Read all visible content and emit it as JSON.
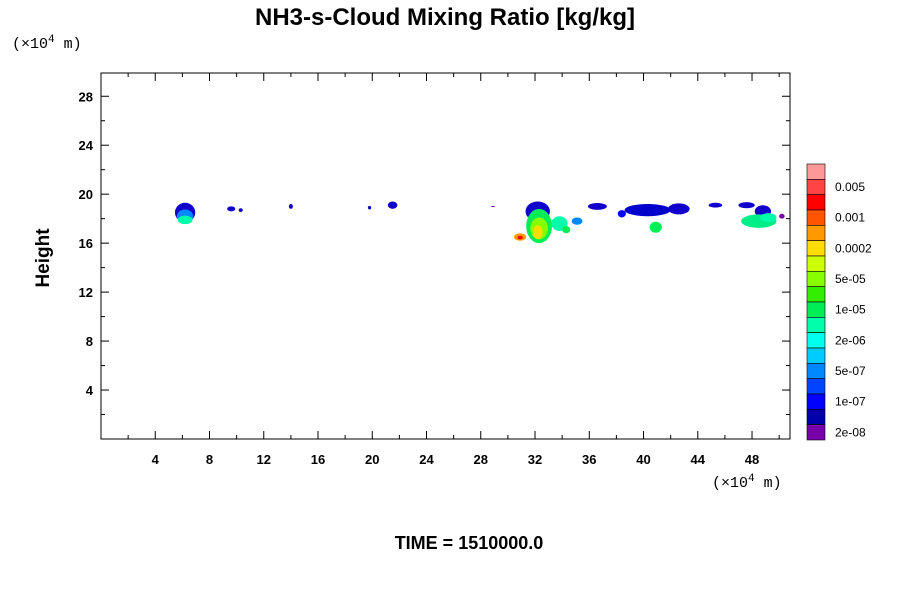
{
  "chart_data": {
    "type": "heatmap",
    "title": "NH3-s-Cloud Mixing Ratio [kg/kg]",
    "ylabel": "Height",
    "x_unit": {
      "prefix": "(×10",
      "exp": "4",
      "suffix": " m)"
    },
    "y_unit": {
      "prefix": "(×10",
      "exp": "4",
      "suffix": " m)"
    },
    "xlim": [
      0,
      50.8
    ],
    "ylim": [
      0,
      29.9
    ],
    "x_ticks": [
      4,
      8,
      12,
      16,
      20,
      24,
      28,
      32,
      36,
      40,
      44,
      48
    ],
    "y_ticks": [
      4,
      8,
      12,
      16,
      20,
      24,
      28
    ],
    "x_minor_step": 2,
    "y_minor_step": 2,
    "footer": "TIME = 1510000.0",
    "colorbar": {
      "colors": [
        "#ff9999",
        "#ff4444",
        "#ff0000",
        "#ff5500",
        "#ff9900",
        "#ffdd00",
        "#ccff00",
        "#88ff00",
        "#33ee00",
        "#00ee55",
        "#00ffaa",
        "#00ffee",
        "#00ccff",
        "#0088ff",
        "#0044ff",
        "#0000ff",
        "#0000aa",
        "#7700aa"
      ],
      "labels": [
        "0.005",
        "0.001",
        "0.0002",
        "5e-05",
        "1e-05",
        "2e-06",
        "5e-07",
        "1e-07",
        "2e-08"
      ]
    },
    "cloud_patches": [
      {
        "x": 6.2,
        "y": 18.5,
        "rx": 0.75,
        "ry": 0.8,
        "color": "#1100cc"
      },
      {
        "x": 6.2,
        "y": 18.2,
        "rx": 0.6,
        "ry": 0.55,
        "color": "#0088ff"
      },
      {
        "x": 6.2,
        "y": 17.9,
        "rx": 0.55,
        "ry": 0.35,
        "color": "#00ffaa"
      },
      {
        "x": 9.6,
        "y": 18.8,
        "rx": 0.3,
        "ry": 0.2,
        "color": "#1100cc"
      },
      {
        "x": 10.3,
        "y": 18.7,
        "rx": 0.15,
        "ry": 0.15,
        "color": "#1100cc"
      },
      {
        "x": 14.0,
        "y": 19.0,
        "rx": 0.15,
        "ry": 0.2,
        "color": "#1100cc"
      },
      {
        "x": 19.8,
        "y": 18.9,
        "rx": 0.12,
        "ry": 0.15,
        "color": "#1100cc"
      },
      {
        "x": 21.5,
        "y": 19.1,
        "rx": 0.35,
        "ry": 0.3,
        "color": "#1100cc"
      },
      {
        "x": 28.9,
        "y": 19.0,
        "rx": 0.15,
        "ry": 0.05,
        "color": "#7700aa"
      },
      {
        "x": 32.2,
        "y": 18.6,
        "rx": 0.9,
        "ry": 0.8,
        "color": "#1100cc"
      },
      {
        "x": 32.3,
        "y": 17.4,
        "rx": 0.95,
        "ry": 1.4,
        "color": "#00ee55"
      },
      {
        "x": 32.3,
        "y": 17.2,
        "rx": 0.65,
        "ry": 0.9,
        "color": "#88ff00"
      },
      {
        "x": 32.2,
        "y": 16.9,
        "rx": 0.35,
        "ry": 0.55,
        "color": "#ffdd00"
      },
      {
        "x": 33.8,
        "y": 17.6,
        "rx": 0.6,
        "ry": 0.6,
        "color": "#00ffaa"
      },
      {
        "x": 34.3,
        "y": 17.1,
        "rx": 0.3,
        "ry": 0.3,
        "color": "#00ee55"
      },
      {
        "x": 30.9,
        "y": 16.5,
        "rx": 0.45,
        "ry": 0.3,
        "color": "#ff9900"
      },
      {
        "x": 30.9,
        "y": 16.45,
        "rx": 0.2,
        "ry": 0.15,
        "color": "#ff0000"
      },
      {
        "x": 35.1,
        "y": 17.8,
        "rx": 0.4,
        "ry": 0.3,
        "color": "#0088ff"
      },
      {
        "x": 36.6,
        "y": 19.0,
        "rx": 0.7,
        "ry": 0.28,
        "color": "#1100cc"
      },
      {
        "x": 38.4,
        "y": 18.4,
        "rx": 0.3,
        "ry": 0.3,
        "color": "#0000ff"
      },
      {
        "x": 40.3,
        "y": 18.7,
        "rx": 1.7,
        "ry": 0.5,
        "color": "#0000cc"
      },
      {
        "x": 42.6,
        "y": 18.8,
        "rx": 0.8,
        "ry": 0.45,
        "color": "#1100cc"
      },
      {
        "x": 40.9,
        "y": 17.3,
        "rx": 0.45,
        "ry": 0.45,
        "color": "#00ee55"
      },
      {
        "x": 45.3,
        "y": 19.1,
        "rx": 0.5,
        "ry": 0.2,
        "color": "#1100cc"
      },
      {
        "x": 47.6,
        "y": 19.1,
        "rx": 0.6,
        "ry": 0.25,
        "color": "#1100cc"
      },
      {
        "x": 48.8,
        "y": 18.6,
        "rx": 0.6,
        "ry": 0.5,
        "color": "#1100cc"
      },
      {
        "x": 48.5,
        "y": 17.8,
        "rx": 1.3,
        "ry": 0.55,
        "color": "#00ee88"
      },
      {
        "x": 49.2,
        "y": 18.1,
        "rx": 0.6,
        "ry": 0.35,
        "color": "#00ffaa"
      },
      {
        "x": 50.2,
        "y": 18.2,
        "rx": 0.2,
        "ry": 0.2,
        "color": "#7700aa"
      }
    ]
  }
}
